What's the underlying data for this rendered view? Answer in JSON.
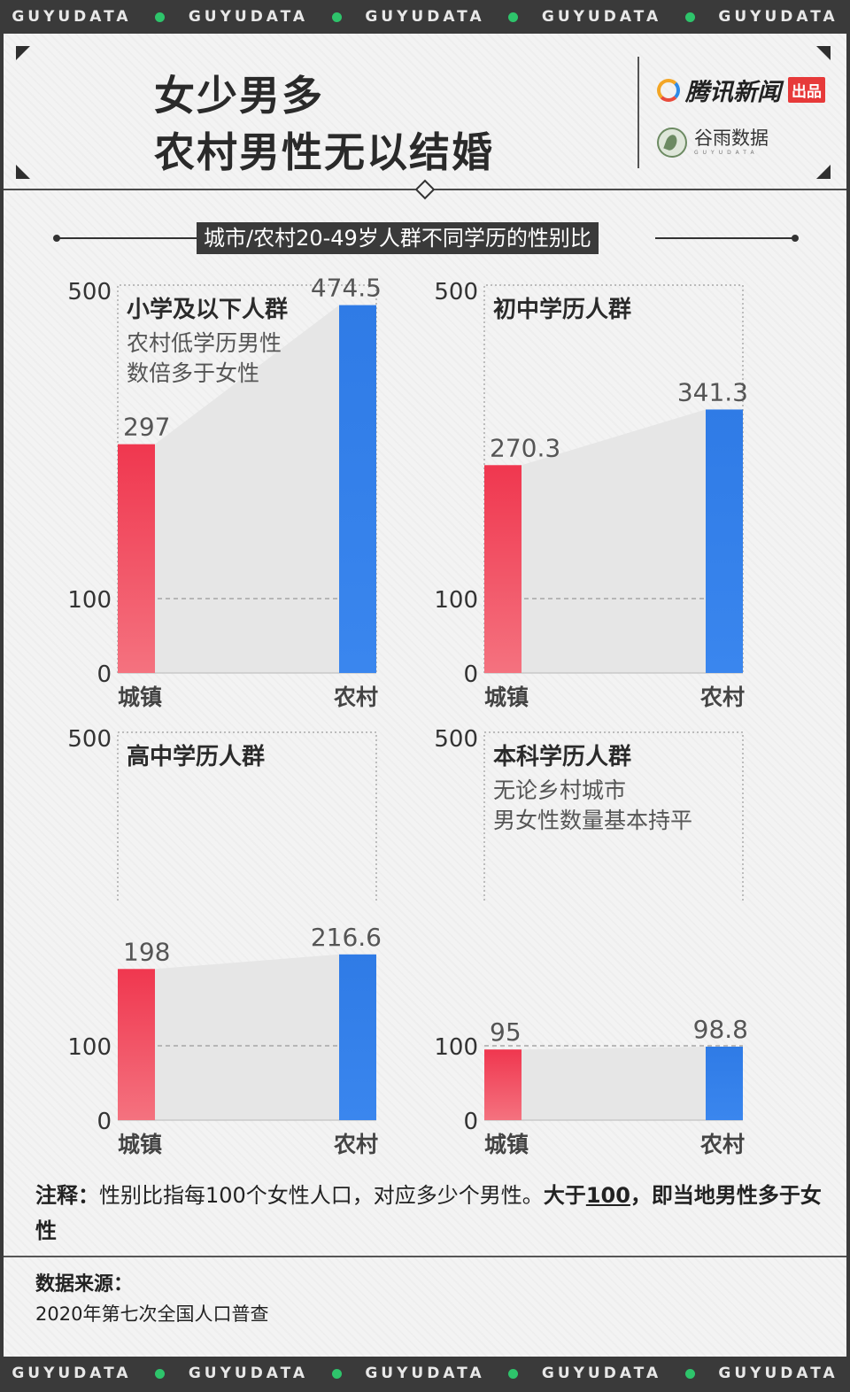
{
  "ticker": {
    "text": "GUYUDATA"
  },
  "header": {
    "title_line1": "女少男多",
    "title_line2": "农村男性无以结婚",
    "logo1_text": "腾讯新闻",
    "logo1_badge": "出品",
    "logo2_text": "谷雨数据",
    "logo2_sub": "GUYUDATA"
  },
  "subtitle": "城市/农村20-49岁人群不同学历的性别比",
  "colors": {
    "urban": "#ef4358",
    "rural": "#2f7be6"
  },
  "chart_data": [
    {
      "type": "bar",
      "title": "小学及以下人群",
      "note_lines": [
        "农村低学历男性",
        "数倍多于女性"
      ],
      "categories": [
        "城镇",
        "农村"
      ],
      "values": [
        297,
        474.5
      ],
      "value_labels": [
        "297",
        "474.5"
      ],
      "yticks": [
        0,
        100,
        500
      ],
      "ylim": [
        0,
        500
      ],
      "reference_line": 100
    },
    {
      "type": "bar",
      "title": "初中学历人群",
      "note_lines": [],
      "categories": [
        "城镇",
        "农村"
      ],
      "values": [
        270.3,
        341.3
      ],
      "value_labels": [
        "270.3",
        "341.3"
      ],
      "yticks": [
        0,
        100,
        500
      ],
      "ylim": [
        0,
        500
      ],
      "reference_line": 100
    },
    {
      "type": "bar",
      "title": "高中学历人群",
      "note_lines": [],
      "categories": [
        "城镇",
        "农村"
      ],
      "values": [
        198,
        216.6
      ],
      "value_labels": [
        "198",
        "216.6"
      ],
      "yticks": [
        0,
        100,
        500
      ],
      "ylim": [
        0,
        500
      ],
      "reference_line": 100
    },
    {
      "type": "bar",
      "title": "本科学历人群",
      "note_lines": [
        "无论乡村城市",
        "男女性数量基本持平"
      ],
      "categories": [
        "城镇",
        "农村"
      ],
      "values": [
        95,
        98.8
      ],
      "value_labels": [
        "95",
        "98.8"
      ],
      "yticks": [
        0,
        100,
        500
      ],
      "ylim": [
        0,
        500
      ],
      "reference_line": 100
    }
  ],
  "note": {
    "label": "注释：",
    "text": "性别比指每100个女性人口，对应多少个男性。",
    "bold_prefix": "大于",
    "bold_underlined": "100",
    "bold_suffix": "，即当地男性多于女性"
  },
  "source": {
    "label": "数据来源：",
    "value": "2020年第七次全国人口普查"
  }
}
